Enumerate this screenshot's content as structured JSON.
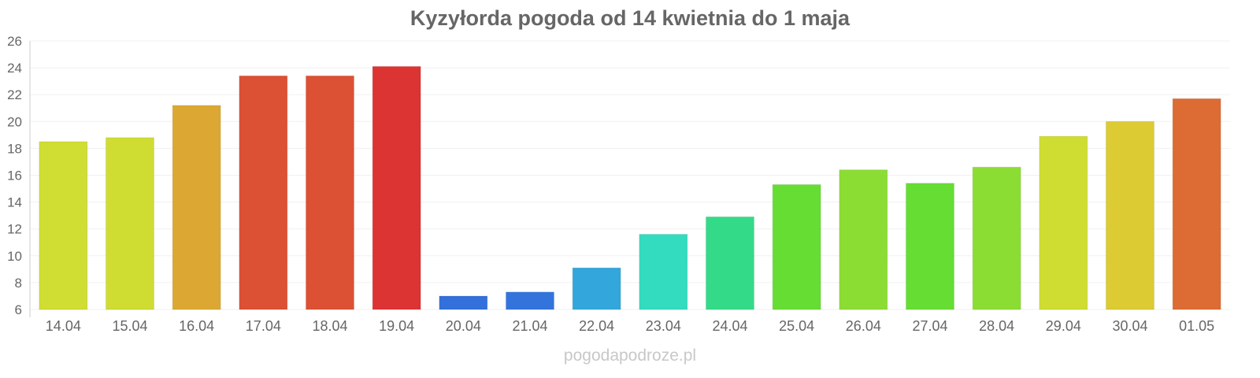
{
  "chart_data": {
    "type": "bar",
    "title": "Kyzyłorda pogoda od 14 kwietnia do 1 maja",
    "xlabel": "",
    "ylabel": "",
    "ylim": [
      6,
      26
    ],
    "yticks": [
      6,
      8,
      10,
      12,
      14,
      16,
      18,
      20,
      22,
      24,
      26
    ],
    "grid": true,
    "categories": [
      "14.04",
      "15.04",
      "16.04",
      "17.04",
      "18.04",
      "19.04",
      "20.04",
      "21.04",
      "22.04",
      "23.04",
      "24.04",
      "25.04",
      "26.04",
      "27.04",
      "28.04",
      "29.04",
      "30.04",
      "01.05"
    ],
    "values": [
      18.5,
      18.8,
      21.2,
      23.4,
      23.4,
      24.1,
      7.0,
      7.3,
      9.1,
      11.6,
      12.9,
      15.3,
      16.4,
      15.4,
      16.6,
      18.9,
      20.0,
      21.7
    ],
    "colors": [
      "#d0dd33",
      "#cfdd33",
      "#dca833",
      "#dc5033",
      "#dc5033",
      "#dc3333",
      "#3370dc",
      "#3374dc",
      "#33a6dc",
      "#33dbbf",
      "#33db88",
      "#66dd33",
      "#8cdd33",
      "#66dd33",
      "#8cdd33",
      "#cfdd33",
      "#dccb33",
      "#dc6c33"
    ]
  },
  "footer": "pogodapodroze.pl"
}
